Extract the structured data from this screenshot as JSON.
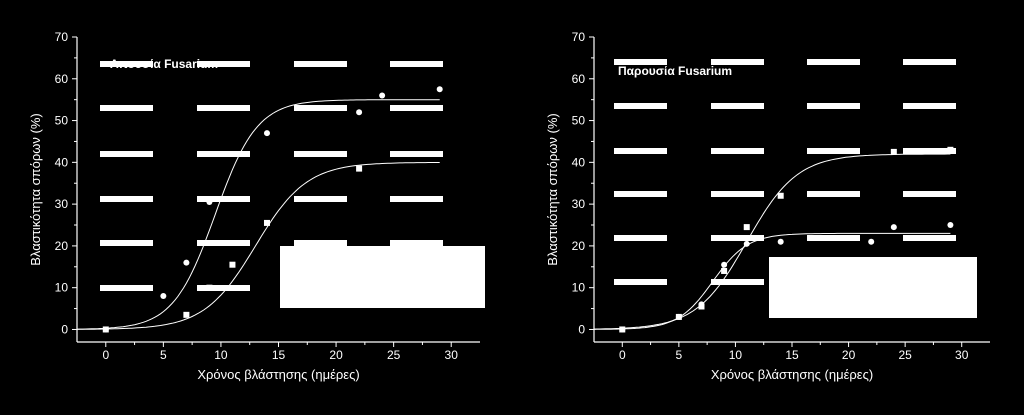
{
  "colors": {
    "background": "#000000",
    "foreground": "#ffffff"
  },
  "chart_data": [
    {
      "type": "scatter",
      "title": "Απουσία Fusarium",
      "xlabel": "Χρόνος βλάστησης (ημέρες)",
      "ylabel": "Βλαστικότητα σπόρων (%)",
      "xlim": [
        -2.5,
        32.5
      ],
      "ylim": [
        -3,
        70
      ],
      "xticks": [
        "0",
        "5",
        "10",
        "15",
        "20",
        "25",
        "30"
      ],
      "yticks": [
        "0",
        "10",
        "20",
        "30",
        "40",
        "50",
        "60",
        "70"
      ],
      "grid": "dashed-white-bars",
      "legend": "bottom-right (blank)",
      "series": [
        {
          "marker": "circle",
          "x": [
            0,
            5,
            7,
            9,
            14,
            22,
            24,
            29
          ],
          "y": [
            0,
            8,
            16,
            30.5,
            47,
            52,
            56,
            57.5
          ],
          "fit": {
            "max": 55,
            "x0": 9.5,
            "k": 0.55
          }
        },
        {
          "marker": "square",
          "x": [
            0,
            7,
            9,
            11,
            14,
            22
          ],
          "y": [
            0,
            3.5,
            10,
            15.5,
            25.5,
            38.5
          ],
          "fit": {
            "max": 40,
            "x0": 13,
            "k": 0.45
          }
        }
      ]
    },
    {
      "type": "scatter",
      "title": "Παρουσία Fusarium",
      "xlabel": "Χρόνος βλάστησης (ημέρες)",
      "ylabel": "Βλαστικότητα σπόρων (%)",
      "xlim": [
        -2.5,
        32.5
      ],
      "ylim": [
        -3,
        70
      ],
      "xticks": [
        "0",
        "5",
        "10",
        "15",
        "20",
        "25",
        "30"
      ],
      "yticks": [
        "0",
        "10",
        "20",
        "30",
        "40",
        "50",
        "60",
        "70"
      ],
      "grid": "dashed-white-bars",
      "legend": "bottom-right (blank)",
      "series": [
        {
          "marker": "square",
          "x": [
            0,
            5,
            7,
            9,
            11,
            14,
            24,
            29
          ],
          "y": [
            0,
            3,
            5.5,
            14,
            24.5,
            32,
            42.5,
            43
          ],
          "fit": {
            "max": 42,
            "x0": 11,
            "k": 0.45
          }
        },
        {
          "marker": "circle",
          "x": [
            0,
            5,
            7,
            9,
            11,
            14,
            22,
            24,
            29
          ],
          "y": [
            0,
            3,
            6,
            15.5,
            20.5,
            21,
            21,
            24.5,
            25
          ],
          "fit": {
            "max": 23,
            "x0": 8,
            "k": 0.65
          }
        }
      ]
    }
  ]
}
